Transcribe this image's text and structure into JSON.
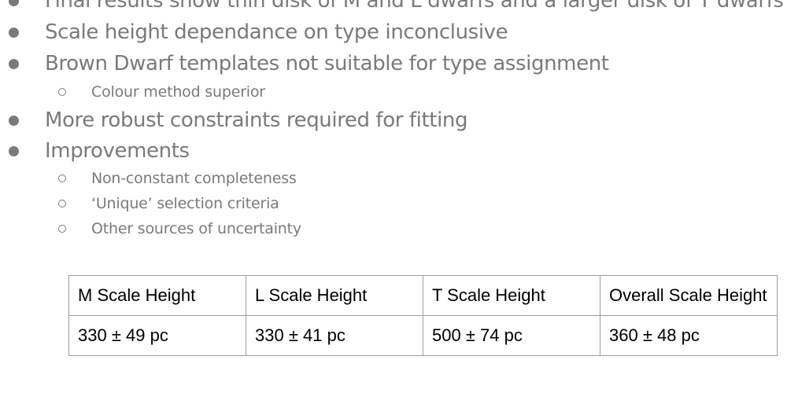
{
  "bullets": [
    {
      "text": "Final results show thin disk of M and L dwarfs and a larger disk of T dwarfs",
      "sub": []
    },
    {
      "text": "Scale height dependance on type inconclusive",
      "sub": []
    },
    {
      "text": "Brown Dwarf templates not suitable for type assignment",
      "sub": [
        "Colour method superior"
      ]
    },
    {
      "text": "More robust constraints required for fitting",
      "sub": []
    },
    {
      "text": "Improvements",
      "sub": [
        "Non-constant completeness",
        "‘Unique’ selection criteria",
        "Other sources of uncertainty"
      ]
    }
  ],
  "table": {
    "headers": [
      "M Scale Height",
      "L Scale Height",
      "T Scale Height",
      "Overall Scale Height"
    ],
    "rows": [
      [
        "330 ± 49 pc",
        "330 ± 41 pc",
        "500 ± 74 pc",
        "360 ± 48 pc"
      ]
    ]
  }
}
